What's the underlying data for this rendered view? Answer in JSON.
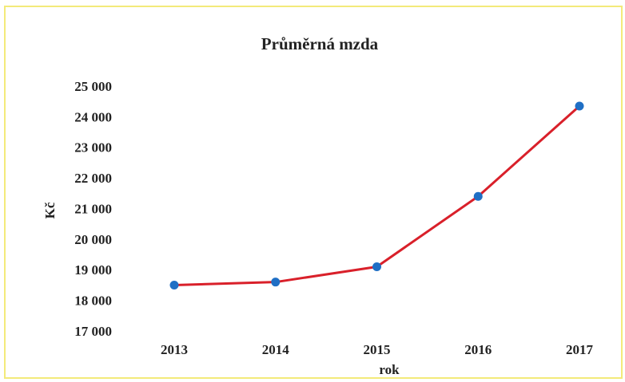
{
  "chart_data": {
    "type": "line",
    "title": "Průměrná mzda",
    "x_label": "rok",
    "y_label": "Kč",
    "categories": [
      "2013",
      "2014",
      "2015",
      "2016",
      "2017"
    ],
    "values": [
      18550,
      18650,
      19150,
      21450,
      24400
    ],
    "color": "#d9202a",
    "marker_color": "#1f6fc5",
    "ylim": [
      17000,
      25000
    ],
    "yticks": [
      {
        "value": 17000,
        "label": "17 000"
      },
      {
        "value": 18000,
        "label": "18 000"
      },
      {
        "value": 19000,
        "label": "19 000"
      },
      {
        "value": 20000,
        "label": "20 000"
      },
      {
        "value": 21000,
        "label": "21 000"
      },
      {
        "value": 22000,
        "label": "22 000"
      },
      {
        "value": 23000,
        "label": "23 000"
      },
      {
        "value": 24000,
        "label": "24 000"
      },
      {
        "value": 25000,
        "label": "25 000"
      }
    ],
    "grid": false
  }
}
